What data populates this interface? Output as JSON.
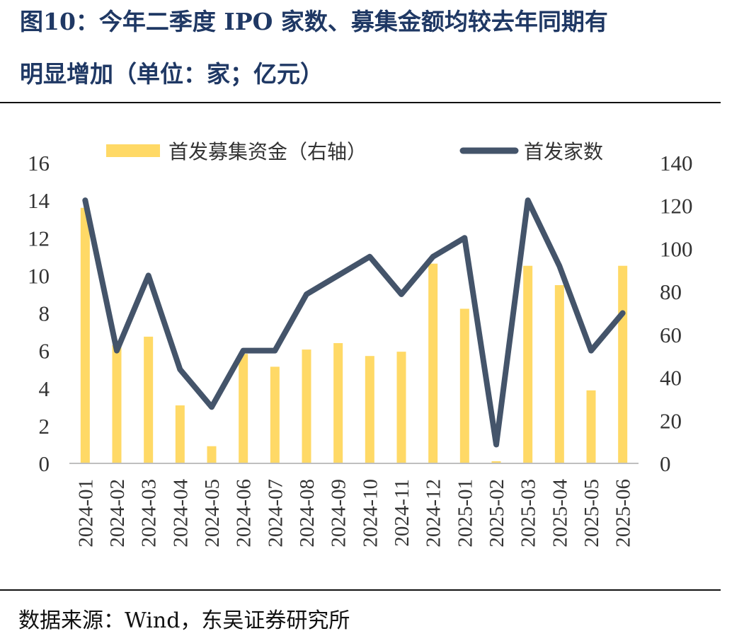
{
  "title_line_1": "图10：今年二季度 IPO 家数、募集金额均较去年同期有",
  "title_line_2": "明显增加（单位：家；亿元）",
  "source": "数据来源：Wind，东吴证券研究所",
  "chart_data": {
    "type": "bar+line",
    "categories": [
      "2024-01",
      "2024-02",
      "2024-03",
      "2024-04",
      "2024-05",
      "2024-06",
      "2024-07",
      "2024-08",
      "2024-09",
      "2024-10",
      "2024-11",
      "2024-12",
      "2025-01",
      "2025-02",
      "2025-03",
      "2025-04",
      "2025-05",
      "2025-06"
    ],
    "left_axis": {
      "ylim": [
        0,
        16
      ],
      "ticks": [
        "0",
        "2",
        "4",
        "6",
        "8",
        "10",
        "12",
        "14",
        "16"
      ]
    },
    "right_axis": {
      "ylim": [
        0,
        140
      ],
      "ticks": [
        "0",
        "20",
        "40",
        "60",
        "80",
        "100",
        "120",
        "140"
      ]
    },
    "series": [
      {
        "name": "首发募集资金（右轴）",
        "kind": "bar",
        "axis": "right",
        "color": "#FFD966",
        "values": [
          119,
          55,
          59,
          27,
          8,
          51,
          45,
          53,
          56,
          50,
          52,
          93,
          72,
          1,
          92,
          83,
          34,
          92
        ]
      },
      {
        "name": "首发家数",
        "kind": "line",
        "axis": "left",
        "color": "#44546A",
        "values": [
          14,
          6,
          10,
          5,
          3,
          6,
          6,
          9,
          10,
          11,
          9,
          11,
          12,
          1,
          14,
          10.5,
          6,
          8
        ]
      }
    ],
    "legend_position": "top",
    "grid": false
  }
}
